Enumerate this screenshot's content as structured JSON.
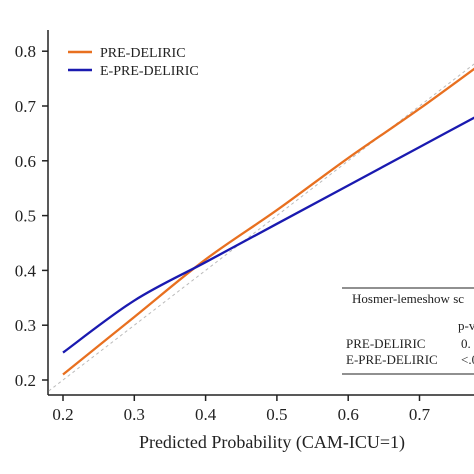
{
  "chart_data": {
    "type": "line",
    "xlabel": "Predicted Probability (CAM-ICU=1)",
    "ylabel": "",
    "xlim": [
      0.18,
      0.82
    ],
    "ylim": [
      0.18,
      0.82
    ],
    "x_ticks": [
      "0.2",
      "0.3",
      "0.4",
      "0.5",
      "0.6",
      "0.7"
    ],
    "y_ticks": [
      "0.2",
      "0.3",
      "0.4",
      "0.5",
      "0.6",
      "0.7",
      "0.8"
    ],
    "x_tick_values": [
      0.2,
      0.3,
      0.4,
      0.5,
      0.6,
      0.7
    ],
    "y_tick_values": [
      0.2,
      0.3,
      0.4,
      0.5,
      0.6,
      0.7,
      0.8
    ],
    "grid": false,
    "legend_position": "top-left",
    "reference_line": {
      "style": "dashed",
      "color": "#bbbbbb",
      "points": [
        [
          0.18,
          0.18
        ],
        [
          0.82,
          0.82
        ]
      ]
    },
    "series": [
      {
        "name": "PRE-DELIRIC",
        "color": "#e87020",
        "x": [
          0.2,
          0.3,
          0.4,
          0.5,
          0.6,
          0.7,
          0.8
        ],
        "y": [
          0.21,
          0.315,
          0.42,
          0.51,
          0.605,
          0.695,
          0.79
        ]
      },
      {
        "name": "E-PRE-DELIRIC",
        "color": "#1a1ab0",
        "x": [
          0.2,
          0.3,
          0.4,
          0.5,
          0.6,
          0.7,
          0.8
        ],
        "y": [
          0.25,
          0.345,
          0.415,
          0.485,
          0.555,
          0.625,
          0.695
        ]
      }
    ],
    "hosmer_box": {
      "title": "Hosmer-lemeshow sc",
      "header": "p-v",
      "rows": [
        {
          "label": "PRE-DELIRIC",
          "value": "0.",
          "color": "#e87020"
        },
        {
          "label": "E-PRE-DELIRIC",
          "value": "<.0",
          "color": "#1a1ab0"
        }
      ]
    }
  }
}
